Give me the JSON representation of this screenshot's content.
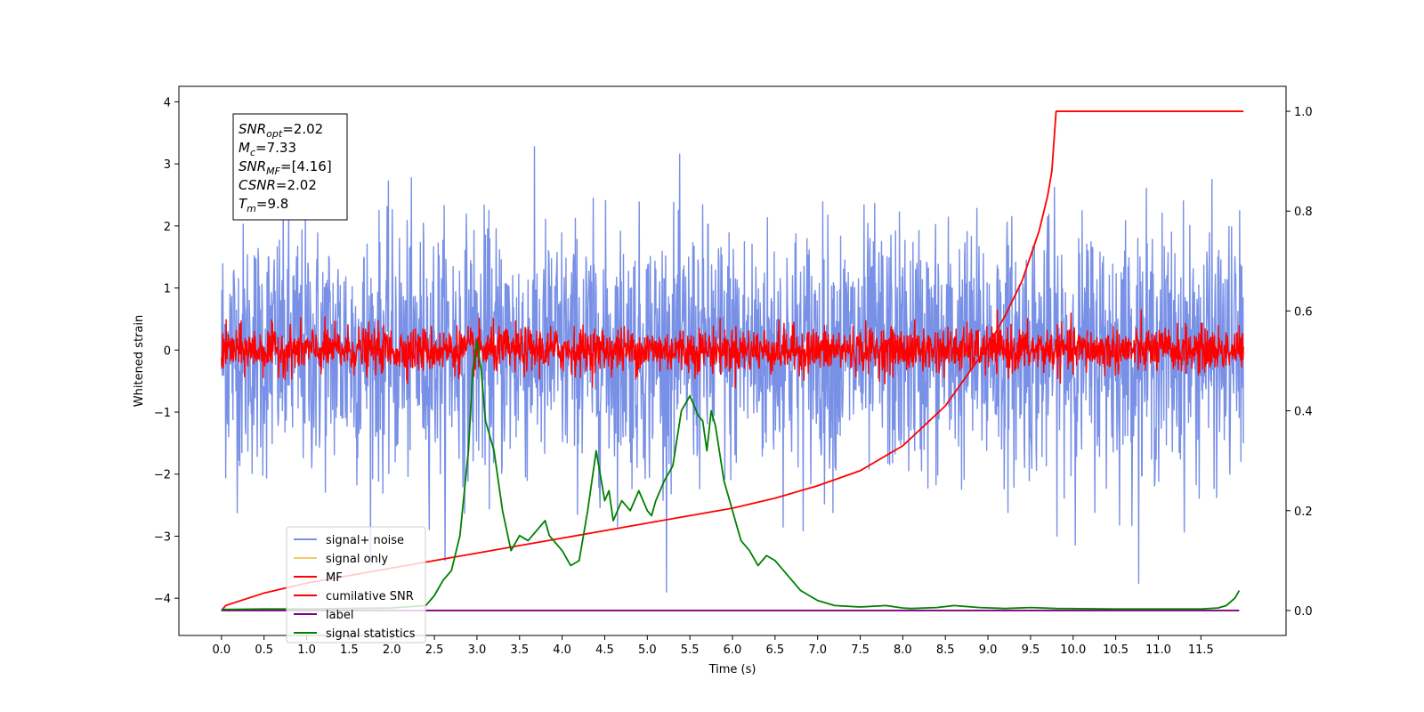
{
  "chart_data": {
    "type": "line",
    "xlabel": "Time (s)",
    "ylabel": "Whitened strain",
    "xlim": [
      -0.5,
      12.5
    ],
    "ylim": [
      -4.6,
      4.25
    ],
    "ylim_right": [
      -0.05,
      1.05
    ],
    "xticks": [
      "0.0",
      "0.5",
      "1.0",
      "1.5",
      "2.0",
      "2.5",
      "3.0",
      "3.5",
      "4.0",
      "4.5",
      "5.0",
      "5.5",
      "6.0",
      "6.5",
      "7.0",
      "7.5",
      "8.0",
      "8.5",
      "9.0",
      "9.5",
      "10.0",
      "10.5",
      "11.0",
      "11.5"
    ],
    "yticks_left": [
      "4",
      "3",
      "2",
      "1",
      "0",
      "−1",
      "−2",
      "−3",
      "−4"
    ],
    "yticks_right": [
      "1.0",
      "0.8",
      "0.6",
      "0.4",
      "0.2",
      "0.0"
    ],
    "legend_position": "lower-left",
    "info_box": [
      {
        "sym": "SNR",
        "sub": "opt",
        "val": "=2.02"
      },
      {
        "sym": "M",
        "sub": "c",
        "val": "=7.33"
      },
      {
        "sym": "SNR",
        "sub": "MF",
        "val": "=[4.16]"
      },
      {
        "sym": "CSNR",
        "sub": "",
        "val": "=2.02"
      },
      {
        "sym": "T",
        "sub": "m",
        "val": "=9.8"
      }
    ],
    "series": [
      {
        "name": "signal+ noise",
        "color": "#7890e6",
        "axis": "left",
        "kind": "noise",
        "x_range": [
          0,
          12.0
        ],
        "approx_std": 1.0,
        "mean": 0.0
      },
      {
        "name": "signal only",
        "color": "#f6c96a",
        "axis": "left",
        "kind": "hidden"
      },
      {
        "name": "MF",
        "color": "#ff0000",
        "axis": "left",
        "kind": "noise",
        "x_range": [
          0,
          12.0
        ],
        "approx_std": 0.18,
        "mean": 0.0
      },
      {
        "name": "cumilative SNR",
        "color": "#ff0000",
        "axis": "right",
        "kind": "line",
        "x": [
          0,
          0.05,
          0.5,
          1,
          1.5,
          2,
          2.5,
          3,
          3.5,
          4,
          4.5,
          5,
          5.5,
          6,
          6.5,
          7,
          7.5,
          8,
          8.5,
          9,
          9.2,
          9.4,
          9.5,
          9.6,
          9.7,
          9.75,
          9.8,
          10,
          11,
          12
        ],
        "y": [
          0.0,
          0.01,
          0.035,
          0.055,
          0.07,
          0.085,
          0.1,
          0.115,
          0.13,
          0.145,
          0.16,
          0.175,
          0.19,
          0.205,
          0.225,
          0.25,
          0.28,
          0.33,
          0.41,
          0.53,
          0.59,
          0.66,
          0.71,
          0.76,
          0.83,
          0.88,
          1.0,
          1.0,
          1.0,
          1.0
        ]
      },
      {
        "name": "label",
        "color": "#800080",
        "axis": "right",
        "kind": "line",
        "x": [
          0,
          11.95
        ],
        "y": [
          0.0,
          0.0
        ]
      },
      {
        "name": "signal statistics",
        "color": "#008000",
        "axis": "right",
        "kind": "line",
        "x": [
          0,
          0.5,
          1.0,
          1.5,
          2.0,
          2.4,
          2.5,
          2.6,
          2.7,
          2.8,
          2.9,
          2.95,
          3.0,
          3.05,
          3.1,
          3.2,
          3.3,
          3.4,
          3.5,
          3.6,
          3.7,
          3.8,
          3.85,
          3.9,
          4.0,
          4.1,
          4.2,
          4.3,
          4.4,
          4.5,
          4.55,
          4.6,
          4.7,
          4.8,
          4.9,
          5.0,
          5.05,
          5.1,
          5.2,
          5.3,
          5.4,
          5.5,
          5.6,
          5.65,
          5.7,
          5.75,
          5.8,
          5.9,
          6.0,
          6.1,
          6.2,
          6.3,
          6.4,
          6.5,
          6.6,
          6.7,
          6.8,
          6.9,
          7.0,
          7.2,
          7.5,
          7.8,
          8.0,
          8.1,
          8.4,
          8.6,
          8.9,
          9.2,
          9.5,
          9.8,
          10.5,
          11.0,
          11.5,
          11.7,
          11.8,
          11.9,
          11.95
        ],
        "y": [
          0.002,
          0.003,
          0.003,
          0.004,
          0.005,
          0.01,
          0.03,
          0.06,
          0.08,
          0.15,
          0.32,
          0.48,
          0.54,
          0.48,
          0.38,
          0.32,
          0.2,
          0.12,
          0.15,
          0.14,
          0.16,
          0.18,
          0.15,
          0.14,
          0.12,
          0.09,
          0.1,
          0.2,
          0.32,
          0.22,
          0.24,
          0.18,
          0.22,
          0.2,
          0.24,
          0.2,
          0.19,
          0.22,
          0.26,
          0.29,
          0.4,
          0.43,
          0.39,
          0.38,
          0.32,
          0.4,
          0.37,
          0.26,
          0.2,
          0.14,
          0.12,
          0.09,
          0.11,
          0.1,
          0.08,
          0.06,
          0.04,
          0.03,
          0.02,
          0.01,
          0.007,
          0.01,
          0.005,
          0.004,
          0.006,
          0.01,
          0.006,
          0.004,
          0.006,
          0.004,
          0.003,
          0.003,
          0.003,
          0.005,
          0.01,
          0.025,
          0.04
        ]
      }
    ]
  }
}
